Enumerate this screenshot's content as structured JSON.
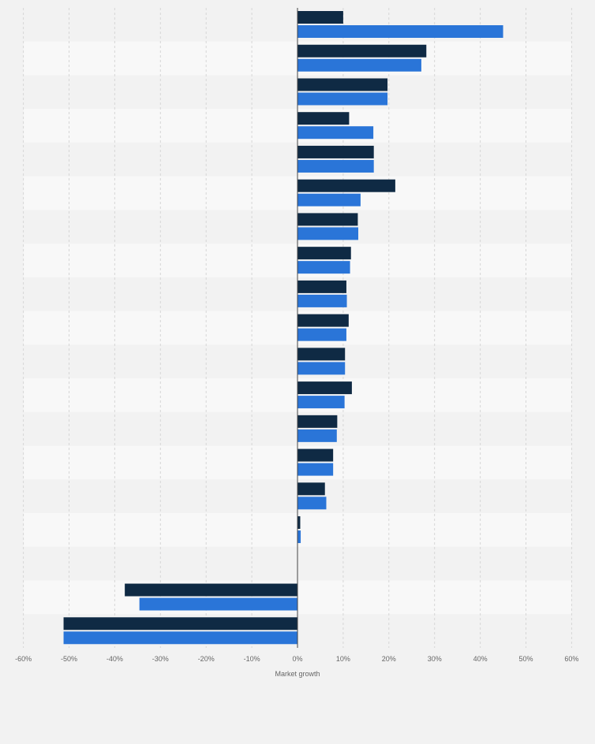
{
  "chart_data": {
    "type": "bar",
    "orientation": "horizontal",
    "categories": [
      "",
      "",
      "",
      "",
      "",
      "",
      "",
      "",
      "",
      "",
      "",
      "",
      "",
      "",
      "",
      "",
      "",
      "",
      ""
    ],
    "series": [
      {
        "color": "#0f2a44",
        "values": [
          10,
          28.2,
          19.7,
          11.3,
          16.7,
          21.4,
          13.2,
          11.7,
          10.7,
          11.2,
          10.4,
          11.9,
          8.7,
          7.8,
          6.0,
          0.6,
          0,
          -37.8,
          -51.2
        ]
      },
      {
        "color": "#2a75d8",
        "values": [
          45.0,
          27.1,
          19.7,
          16.6,
          16.7,
          13.8,
          13.3,
          11.5,
          10.8,
          10.7,
          10.4,
          10.3,
          8.6,
          7.8,
          6.3,
          0.7,
          0,
          -34.6,
          -51.2
        ]
      }
    ],
    "xlabel": "Market growth",
    "xlim": [
      -60,
      60
    ],
    "xticks": [
      -60,
      -50,
      -40,
      -30,
      -20,
      -10,
      0,
      10,
      20,
      30,
      40,
      50,
      60
    ],
    "xtick_labels": [
      "-60%",
      "-50%",
      "-40%",
      "-30%",
      "-20%",
      "-10%",
      "0%",
      "10%",
      "20%",
      "30%",
      "40%",
      "50%",
      "60%"
    ],
    "grid": true,
    "legend": "none"
  }
}
